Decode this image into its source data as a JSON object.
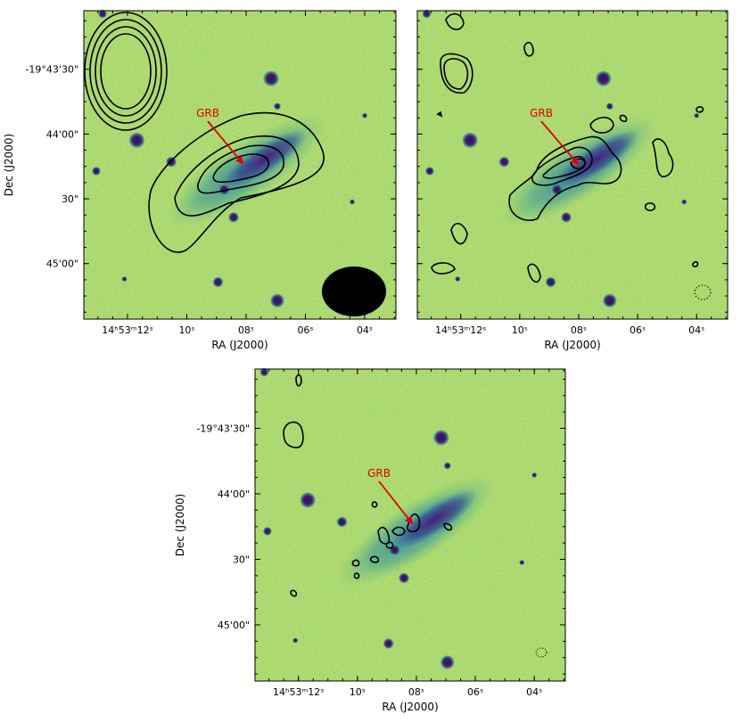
{
  "figure": {
    "annotation": "GRB",
    "colors": {
      "background_field": "#c2d95a",
      "galaxy_mid": "#3a7f9e",
      "galaxy_core": "#4a2a78",
      "star_core": "#3a0f5c",
      "contour": "#000000",
      "grb_arrow": "#e00000"
    },
    "colormap": "viridis-like"
  },
  "chart_data": [
    {
      "type": "image-contour",
      "panel": "top-left",
      "xlabel": "RA (J2000)",
      "ylabel": "Dec (J2000)",
      "x_ticks": [
        "14h53m12s",
        "10s",
        "08s",
        "06s",
        "04s"
      ],
      "y_ticks": [
        "-19°43'30\"",
        "44'00\"",
        "30\"",
        "45'00\""
      ],
      "annotation": "GRB",
      "contour_levels_shown": 4,
      "beam_ellipse": true
    },
    {
      "type": "image-contour",
      "panel": "top-right",
      "xlabel": "RA (J2000)",
      "x_ticks": [
        "14h53m12s",
        "10s",
        "08s",
        "06s",
        "04s"
      ],
      "annotation": "GRB",
      "beam_ellipse": true
    },
    {
      "type": "image-contour",
      "panel": "bottom",
      "xlabel": "RA (J2000)",
      "ylabel": "Dec (J2000)",
      "x_ticks": [
        "14h53m12s",
        "10s",
        "08s",
        "06s",
        "04s"
      ],
      "y_ticks": [
        "-19°43'30\"",
        "44'00\"",
        "30\"",
        "45'00\""
      ],
      "annotation": "GRB",
      "beam_ellipse": true
    }
  ]
}
